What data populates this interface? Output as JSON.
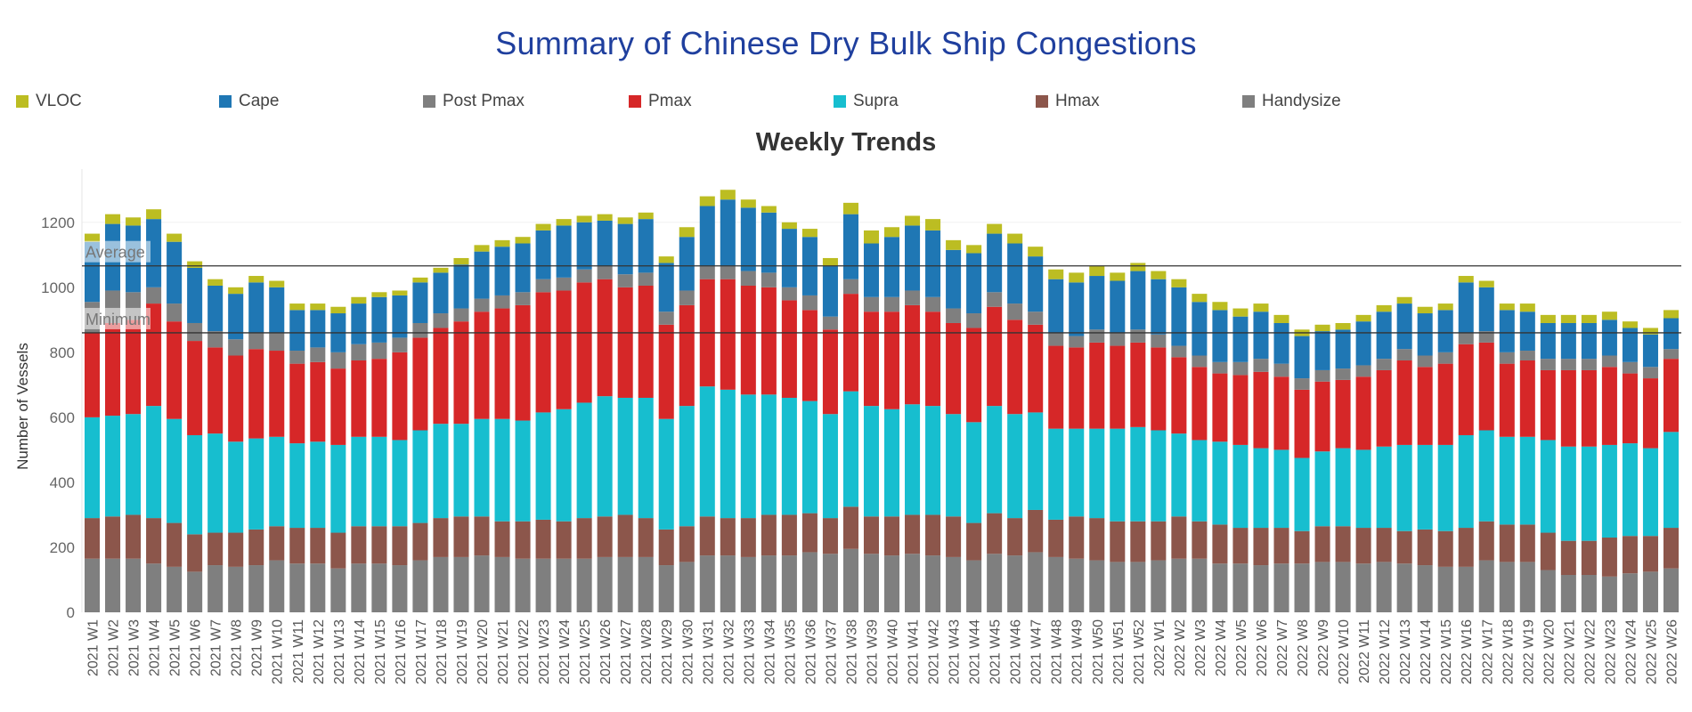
{
  "title": "Summary of Chinese Dry Bulk Ship Congestions",
  "subtitle": "Weekly Trends",
  "legend": [
    {
      "name": "VLOC",
      "color": "#bcbd22"
    },
    {
      "name": "Cape",
      "color": "#1f77b4"
    },
    {
      "name": "Post Pmax",
      "color": "#7f7f7f"
    },
    {
      "name": "Pmax",
      "color": "#d62728"
    },
    {
      "name": "Supra",
      "color": "#17becf"
    },
    {
      "name": "Hmax",
      "color": "#8c564b"
    },
    {
      "name": "Handysize",
      "color": "#7f7f7f"
    }
  ],
  "chart_data": {
    "type": "bar",
    "stacked": true,
    "ylabel": "Number of Vessels",
    "xlabel": "",
    "ylim": [
      0,
      1350
    ],
    "yticks": [
      0,
      200,
      400,
      600,
      800,
      1000,
      1200
    ],
    "reference_lines": [
      {
        "label": "Average",
        "value": 1066
      },
      {
        "label": "Minimum",
        "value": 860
      }
    ],
    "categories": [
      "2021 W1",
      "2021 W2",
      "2021 W3",
      "2021 W4",
      "2021 W5",
      "2021 W6",
      "2021 W7",
      "2021 W8",
      "2021 W9",
      "2021 W10",
      "2021 W11",
      "2021 W12",
      "2021 W13",
      "2021 W14",
      "2021 W15",
      "2021 W16",
      "2021 W17",
      "2021 W18",
      "2021 W19",
      "2021 W20",
      "2021 W21",
      "2021 W22",
      "2021 W23",
      "2021 W24",
      "2021 W25",
      "2021 W26",
      "2021 W27",
      "2021 W28",
      "2021 W29",
      "2021 W30",
      "2021 W31",
      "2021 W32",
      "2021 W33",
      "2021 W34",
      "2021 W35",
      "2021 W36",
      "2021 W37",
      "2021 W38",
      "2021 W39",
      "2021 W40",
      "2021 W41",
      "2021 W42",
      "2021 W43",
      "2021 W44",
      "2021 W45",
      "2021 W46",
      "2021 W47",
      "2021 W48",
      "2021 W49",
      "2021 W50",
      "2021 W51",
      "2021 W52",
      "2022 W1",
      "2022 W2",
      "2022 W3",
      "2022 W4",
      "2022 W5",
      "2022 W6",
      "2022 W7",
      "2022 W8",
      "2022 W9",
      "2022 W10",
      "2022 W11",
      "2022 W12",
      "2022 W13",
      "2022 W14",
      "2022 W15",
      "2022 W16",
      "2022 W17",
      "2022 W18",
      "2022 W19",
      "2022 W20",
      "2022 W21",
      "2022 W22",
      "2022 W23",
      "2022 W24",
      "2022 W25",
      "2022 W26"
    ],
    "series": [
      {
        "name": "Handysize",
        "color": "#7f7f7f",
        "values": [
          165,
          165,
          165,
          150,
          140,
          125,
          145,
          140,
          145,
          160,
          150,
          150,
          135,
          150,
          150,
          145,
          160,
          170,
          170,
          175,
          170,
          165,
          165,
          165,
          165,
          170,
          170,
          170,
          145,
          155,
          175,
          175,
          170,
          175,
          175,
          185,
          180,
          195,
          180,
          175,
          180,
          175,
          170,
          160,
          180,
          175,
          185,
          170,
          165,
          160,
          155,
          155,
          160,
          165,
          165,
          150,
          150,
          145,
          150,
          150,
          155,
          155,
          150,
          155,
          150,
          145,
          140,
          140,
          160,
          155,
          155,
          130,
          115,
          115,
          110,
          120,
          125,
          135
        ]
      },
      {
        "name": "Hmax",
        "color": "#8c564b",
        "values": [
          125,
          130,
          135,
          140,
          135,
          115,
          100,
          105,
          110,
          105,
          110,
          110,
          110,
          115,
          115,
          120,
          115,
          120,
          125,
          120,
          110,
          115,
          120,
          115,
          125,
          125,
          130,
          120,
          110,
          110,
          120,
          115,
          120,
          125,
          125,
          120,
          110,
          130,
          115,
          120,
          120,
          125,
          125,
          115,
          125,
          115,
          130,
          115,
          130,
          130,
          125,
          125,
          120,
          130,
          115,
          120,
          110,
          115,
          110,
          100,
          110,
          110,
          110,
          105,
          100,
          110,
          110,
          120,
          120,
          115,
          115,
          115,
          105,
          105,
          120,
          115,
          110,
          125
        ]
      },
      {
        "name": "Supra",
        "color": "#17becf",
        "values": [
          310,
          310,
          310,
          345,
          320,
          305,
          305,
          280,
          280,
          275,
          260,
          265,
          270,
          275,
          275,
          265,
          285,
          290,
          285,
          300,
          315,
          310,
          330,
          345,
          355,
          370,
          360,
          370,
          340,
          370,
          400,
          395,
          380,
          370,
          360,
          345,
          320,
          355,
          340,
          330,
          340,
          335,
          315,
          310,
          330,
          320,
          300,
          280,
          270,
          275,
          285,
          290,
          280,
          255,
          250,
          255,
          255,
          245,
          240,
          225,
          230,
          240,
          240,
          250,
          265,
          260,
          265,
          285,
          280,
          270,
          270,
          285,
          290,
          290,
          285,
          285,
          270,
          295
        ]
      },
      {
        "name": "Pmax",
        "color": "#d62728",
        "values": [
          260,
          285,
          290,
          315,
          300,
          290,
          265,
          265,
          275,
          265,
          245,
          245,
          235,
          235,
          240,
          270,
          285,
          295,
          315,
          330,
          340,
          355,
          370,
          365,
          370,
          360,
          340,
          345,
          290,
          310,
          330,
          340,
          335,
          330,
          300,
          280,
          260,
          300,
          290,
          300,
          305,
          290,
          280,
          290,
          305,
          290,
          270,
          255,
          250,
          265,
          255,
          260,
          255,
          235,
          225,
          210,
          215,
          235,
          225,
          210,
          215,
          210,
          225,
          235,
          260,
          240,
          250,
          280,
          270,
          225,
          235,
          215,
          235,
          235,
          240,
          215,
          215,
          225
        ]
      },
      {
        "name": "Post Pmax",
        "color": "#7f7f7f",
        "values": [
          95,
          100,
          85,
          50,
          55,
          55,
          50,
          50,
          50,
          55,
          40,
          45,
          50,
          50,
          50,
          45,
          45,
          45,
          40,
          40,
          40,
          40,
          40,
          40,
          40,
          40,
          40,
          40,
          40,
          45,
          40,
          40,
          45,
          45,
          40,
          45,
          40,
          45,
          45,
          45,
          45,
          45,
          45,
          45,
          45,
          50,
          40,
          40,
          35,
          40,
          40,
          40,
          40,
          35,
          35,
          35,
          40,
          40,
          40,
          35,
          35,
          35,
          35,
          35,
          35,
          35,
          35,
          35,
          35,
          35,
          30,
          35,
          35,
          35,
          35,
          35,
          35,
          30
        ]
      },
      {
        "name": "Cape",
        "color": "#1f77b4",
        "values": [
          185,
          205,
          205,
          210,
          190,
          170,
          140,
          140,
          155,
          140,
          125,
          115,
          120,
          125,
          140,
          130,
          125,
          125,
          135,
          145,
          150,
          150,
          150,
          160,
          145,
          140,
          155,
          165,
          150,
          165,
          185,
          205,
          195,
          185,
          180,
          180,
          155,
          200,
          165,
          185,
          200,
          205,
          180,
          185,
          180,
          185,
          170,
          165,
          165,
          165,
          160,
          180,
          170,
          180,
          165,
          160,
          140,
          145,
          125,
          130,
          120,
          120,
          135,
          145,
          140,
          130,
          130,
          155,
          135,
          130,
          120,
          110,
          110,
          110,
          110,
          105,
          100,
          95
        ]
      },
      {
        "name": "VLOC",
        "color": "#bcbd22",
        "values": [
          25,
          30,
          25,
          30,
          25,
          20,
          20,
          20,
          20,
          20,
          20,
          20,
          20,
          20,
          15,
          15,
          15,
          15,
          20,
          20,
          20,
          20,
          20,
          20,
          20,
          20,
          20,
          20,
          20,
          30,
          30,
          30,
          25,
          20,
          20,
          25,
          25,
          35,
          40,
          30,
          30,
          35,
          30,
          25,
          30,
          30,
          30,
          30,
          30,
          30,
          25,
          25,
          25,
          25,
          25,
          25,
          25,
          25,
          25,
          20,
          20,
          20,
          20,
          20,
          20,
          20,
          20,
          20,
          20,
          20,
          25,
          25,
          25,
          25,
          25,
          20,
          20,
          25
        ]
      }
    ]
  }
}
